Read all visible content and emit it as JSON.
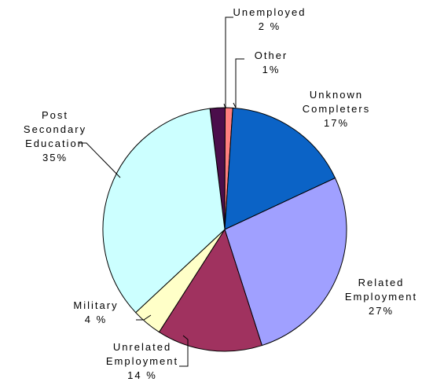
{
  "chart_data": {
    "type": "pie",
    "title": "",
    "slices": [
      {
        "label_lines": [
          "Unemployed"
        ],
        "value_label": "2 %",
        "value": 2,
        "color": "#4b0e4b"
      },
      {
        "label_lines": [
          "Other"
        ],
        "value_label": "1%",
        "value": 1,
        "color": "#ff7f7f"
      },
      {
        "label_lines": [
          "Unknown",
          "Completers"
        ],
        "value_label": "17%",
        "value": 17,
        "color": "#0b63c6"
      },
      {
        "label_lines": [
          "Related",
          "Employment"
        ],
        "value_label": "27%",
        "value": 27,
        "color": "#a0a0ff"
      },
      {
        "label_lines": [
          "Unrelated",
          "Employment"
        ],
        "value_label": "14 %",
        "value": 14,
        "color": "#a0325f"
      },
      {
        "label_lines": [
          "Military"
        ],
        "value_label": "4 %",
        "value": 4,
        "color": "#ffffc8"
      },
      {
        "label_lines": [
          "Post",
          "Secondary",
          "Education"
        ],
        "value_label": "35%",
        "value": 35,
        "color": "#ccffff"
      }
    ],
    "legend": "none",
    "start_angle_deg": -7
  }
}
